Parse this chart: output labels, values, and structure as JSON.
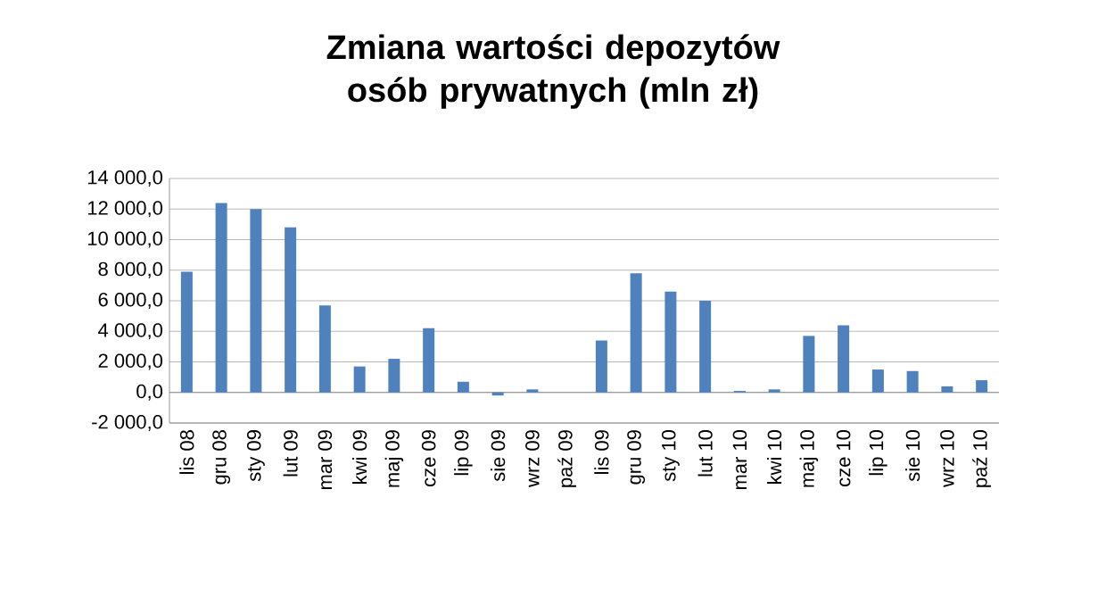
{
  "chart_data": {
    "type": "bar",
    "title": "Zmiana wartości depozytów osób prywatnych (mln zł)",
    "categories": [
      "lis 08",
      "gru 08",
      "sty 09",
      "lut 09",
      "mar 09",
      "kwi 09",
      "maj 09",
      "cze 09",
      "lip 09",
      "sie 09",
      "wrz 09",
      "paź 09",
      "lis 09",
      "gru 09",
      "sty 10",
      "lut 10",
      "mar 10",
      "kwi 10",
      "maj 10",
      "cze 10",
      "lip 10",
      "sie 10",
      "wrz 10",
      "paź 10"
    ],
    "values": [
      7900,
      12400,
      12000,
      10800,
      5700,
      1700,
      2200,
      4200,
      700,
      -200,
      200,
      0,
      3400,
      7800,
      6600,
      6000,
      100,
      200,
      3700,
      4400,
      1500,
      1400,
      400,
      800
    ],
    "color": "#4f81bd",
    "ylim": [
      -2000,
      14000
    ],
    "yticks": [
      {
        "value": -2000,
        "label": "-2 000,0"
      },
      {
        "value": 0,
        "label": "0,0"
      },
      {
        "value": 2000,
        "label": "2 000,0"
      },
      {
        "value": 4000,
        "label": "4 000,0"
      },
      {
        "value": 6000,
        "label": "6 000,0"
      },
      {
        "value": 8000,
        "label": "8 000,0"
      },
      {
        "value": 10000,
        "label": "10 000,0"
      },
      {
        "value": 12000,
        "label": "12 000,0"
      },
      {
        "value": 14000,
        "label": "14 000,0"
      }
    ],
    "grid": "y"
  }
}
